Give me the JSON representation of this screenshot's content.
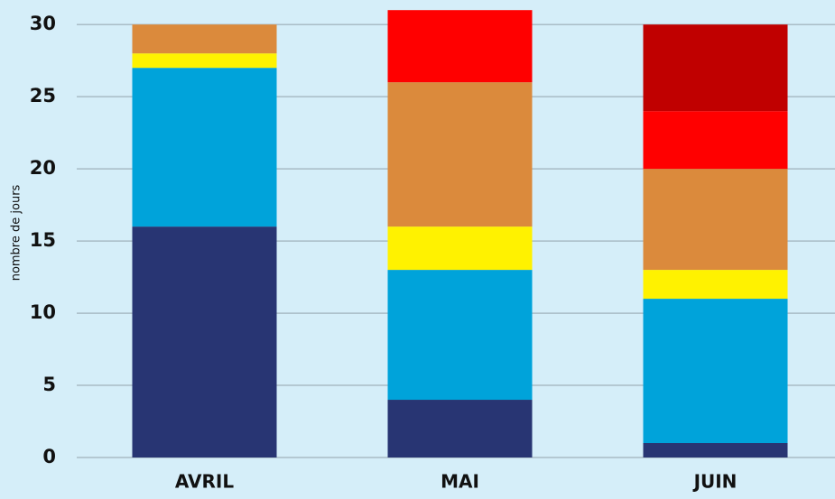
{
  "chart_data": {
    "type": "stacked_bar",
    "y_label": "nombre de jours",
    "categories": [
      "AVRIL",
      "MAI",
      "JUIN"
    ],
    "series": [
      {
        "color": "#283573",
        "values": [
          16,
          4,
          1
        ]
      },
      {
        "color": "#00a3da",
        "values": [
          11,
          9,
          10
        ]
      },
      {
        "color": "#fff200",
        "values": [
          1,
          3,
          2
        ]
      },
      {
        "color": "#db8a3c",
        "values": [
          2,
          10,
          7
        ]
      },
      {
        "color": "#ff0000",
        "values": [
          0,
          5,
          4
        ]
      },
      {
        "color": "#c00000",
        "values": [
          0,
          0,
          6
        ]
      }
    ],
    "ylim": [
      0,
      31.7
    ],
    "yticks": [
      0,
      5,
      10,
      15,
      20,
      25,
      30
    ],
    "grid": true
  }
}
